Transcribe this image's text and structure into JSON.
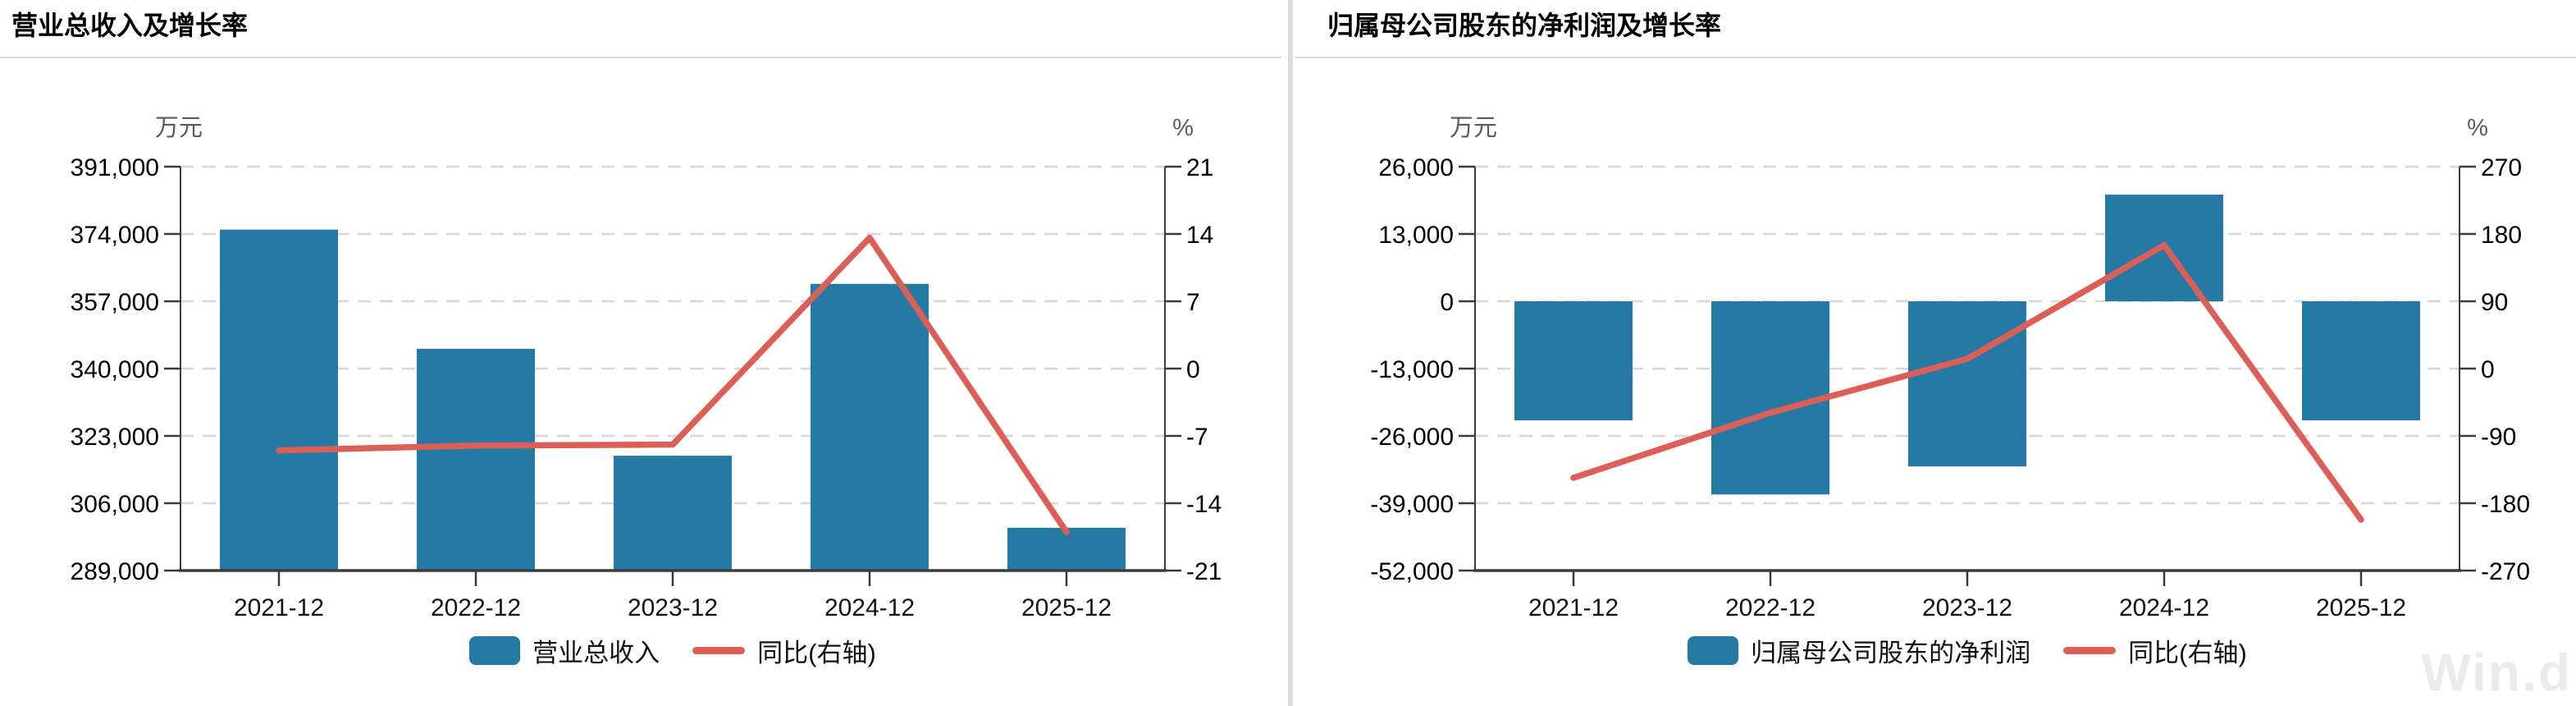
{
  "watermark": "Win.d",
  "chart_data": [
    {
      "type": "bar",
      "subtype": "bar+line dual axis",
      "title": "营业总收入及增长率",
      "unit_left": "万元",
      "unit_right": "%",
      "categories": [
        "2021-12",
        "2022-12",
        "2023-12",
        "2024-12",
        "2025-12"
      ],
      "series": [
        {
          "name": "营业总收入",
          "type": "bar",
          "axis": "left",
          "values": [
            375100,
            345000,
            318000,
            361400,
            299800
          ],
          "color": "#2579a5"
        },
        {
          "name": "同比(右轴)",
          "type": "line",
          "axis": "right",
          "values": [
            -8.5,
            -8.0,
            -7.9,
            13.6,
            -17.0
          ],
          "color": "#dc5f57"
        }
      ],
      "left_axis": {
        "min": 289000,
        "max": 391000,
        "step": 17000,
        "tick_labels": [
          "391,000",
          "374,000",
          "357,000",
          "340,000",
          "323,000",
          "306,000",
          "289,000"
        ]
      },
      "right_axis": {
        "min": -21,
        "max": 21,
        "step": 7,
        "tick_labels": [
          "21",
          "14",
          "7",
          "0",
          "-7",
          "-14",
          "-21"
        ]
      },
      "grid": "horizontal dashed",
      "legend_position": "bottom center"
    },
    {
      "type": "bar",
      "subtype": "bar+line dual axis",
      "title": "归属母公司股东的净利润及增长率",
      "unit_left": "万元",
      "unit_right": "%",
      "categories": [
        "2021-12",
        "2022-12",
        "2023-12",
        "2024-12",
        "2025-12"
      ],
      "series": [
        {
          "name": "归属母公司股东的净利润",
          "type": "bar",
          "axis": "left",
          "values": [
            -23000,
            -37300,
            -31900,
            20600,
            -23000
          ],
          "color": "#2579a5"
        },
        {
          "name": "同比(右轴)",
          "type": "line",
          "axis": "right",
          "values": [
            -146,
            -59,
            13,
            165,
            -202
          ],
          "color": "#dc5f57"
        }
      ],
      "left_axis": {
        "min": -52000,
        "max": 26000,
        "step": 13000,
        "tick_labels": [
          "26,000",
          "13,000",
          "0",
          "-13,000",
          "-26,000",
          "-39,000",
          "-52,000"
        ]
      },
      "right_axis": {
        "min": -270,
        "max": 270,
        "step": 90,
        "tick_labels": [
          "270",
          "180",
          "90",
          "0",
          "-90",
          "-180",
          "-270"
        ]
      },
      "grid": "horizontal dashed",
      "legend_position": "bottom center"
    }
  ]
}
